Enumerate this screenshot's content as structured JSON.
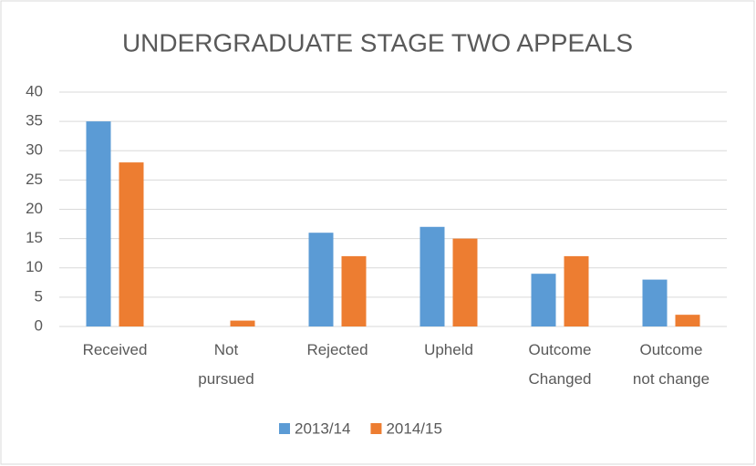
{
  "chart_data": {
    "type": "bar",
    "title": "UNDERGRADUATE STAGE TWO APPEALS",
    "categories": [
      "Received",
      "Not pursued",
      "Rejected",
      "Upheld",
      "Outcome Changed",
      "Outcome not change"
    ],
    "series": [
      {
        "name": "2013/14",
        "color": "#5b9bd5",
        "values": [
          35,
          0,
          16,
          17,
          9,
          8
        ]
      },
      {
        "name": "2014/15",
        "color": "#ed7d31",
        "values": [
          28,
          1,
          12,
          15,
          12,
          2
        ]
      }
    ],
    "ylim": [
      0,
      40
    ],
    "yticks": [
      0,
      5,
      10,
      15,
      20,
      25,
      30,
      35,
      40
    ],
    "grid": true,
    "legend": "bottom"
  }
}
